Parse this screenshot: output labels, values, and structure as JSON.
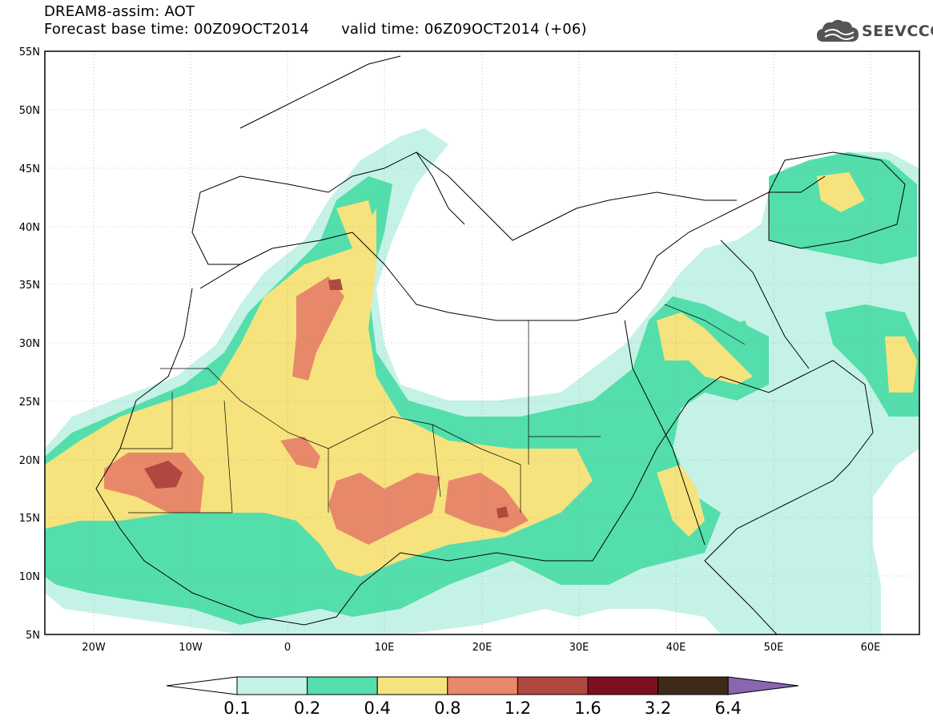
{
  "title": {
    "line1": "DREAM8-assim: AOT",
    "base_time": "Forecast base time: 00Z09OCT2014",
    "valid_time": "valid time: 06Z09OCT2014 (+06)"
  },
  "logo": {
    "text": "SEEVCCC",
    "icon": "cloud-icon"
  },
  "map": {
    "lon_range": [
      -25,
      65
    ],
    "lat_range": [
      5,
      55
    ],
    "lat_ticks": [
      "55N",
      "50N",
      "45N",
      "40N",
      "35N",
      "30N",
      "25N",
      "20N",
      "15N",
      "10N",
      "5N"
    ],
    "lon_ticks": [
      "20W",
      "10W",
      "0",
      "10E",
      "20E",
      "30E",
      "40E",
      "50E",
      "60E"
    ]
  },
  "colorbar": {
    "labels": [
      "0.1",
      "0.2",
      "0.4",
      "0.8",
      "1.2",
      "1.6",
      "3.2",
      "6.4"
    ],
    "colors": [
      "#c5f2e7",
      "#54deac",
      "#f6e37d",
      "#e8886a",
      "#b0483f",
      "#7e0e22",
      "#3e2a17",
      "#8a66b0"
    ],
    "under_color": "#ffffff"
  },
  "colors": {
    "c01": "#c5f2e7",
    "c02": "#54deac",
    "c04": "#f6e37d",
    "c08": "#e8886a",
    "c12": "#b0483f"
  }
}
